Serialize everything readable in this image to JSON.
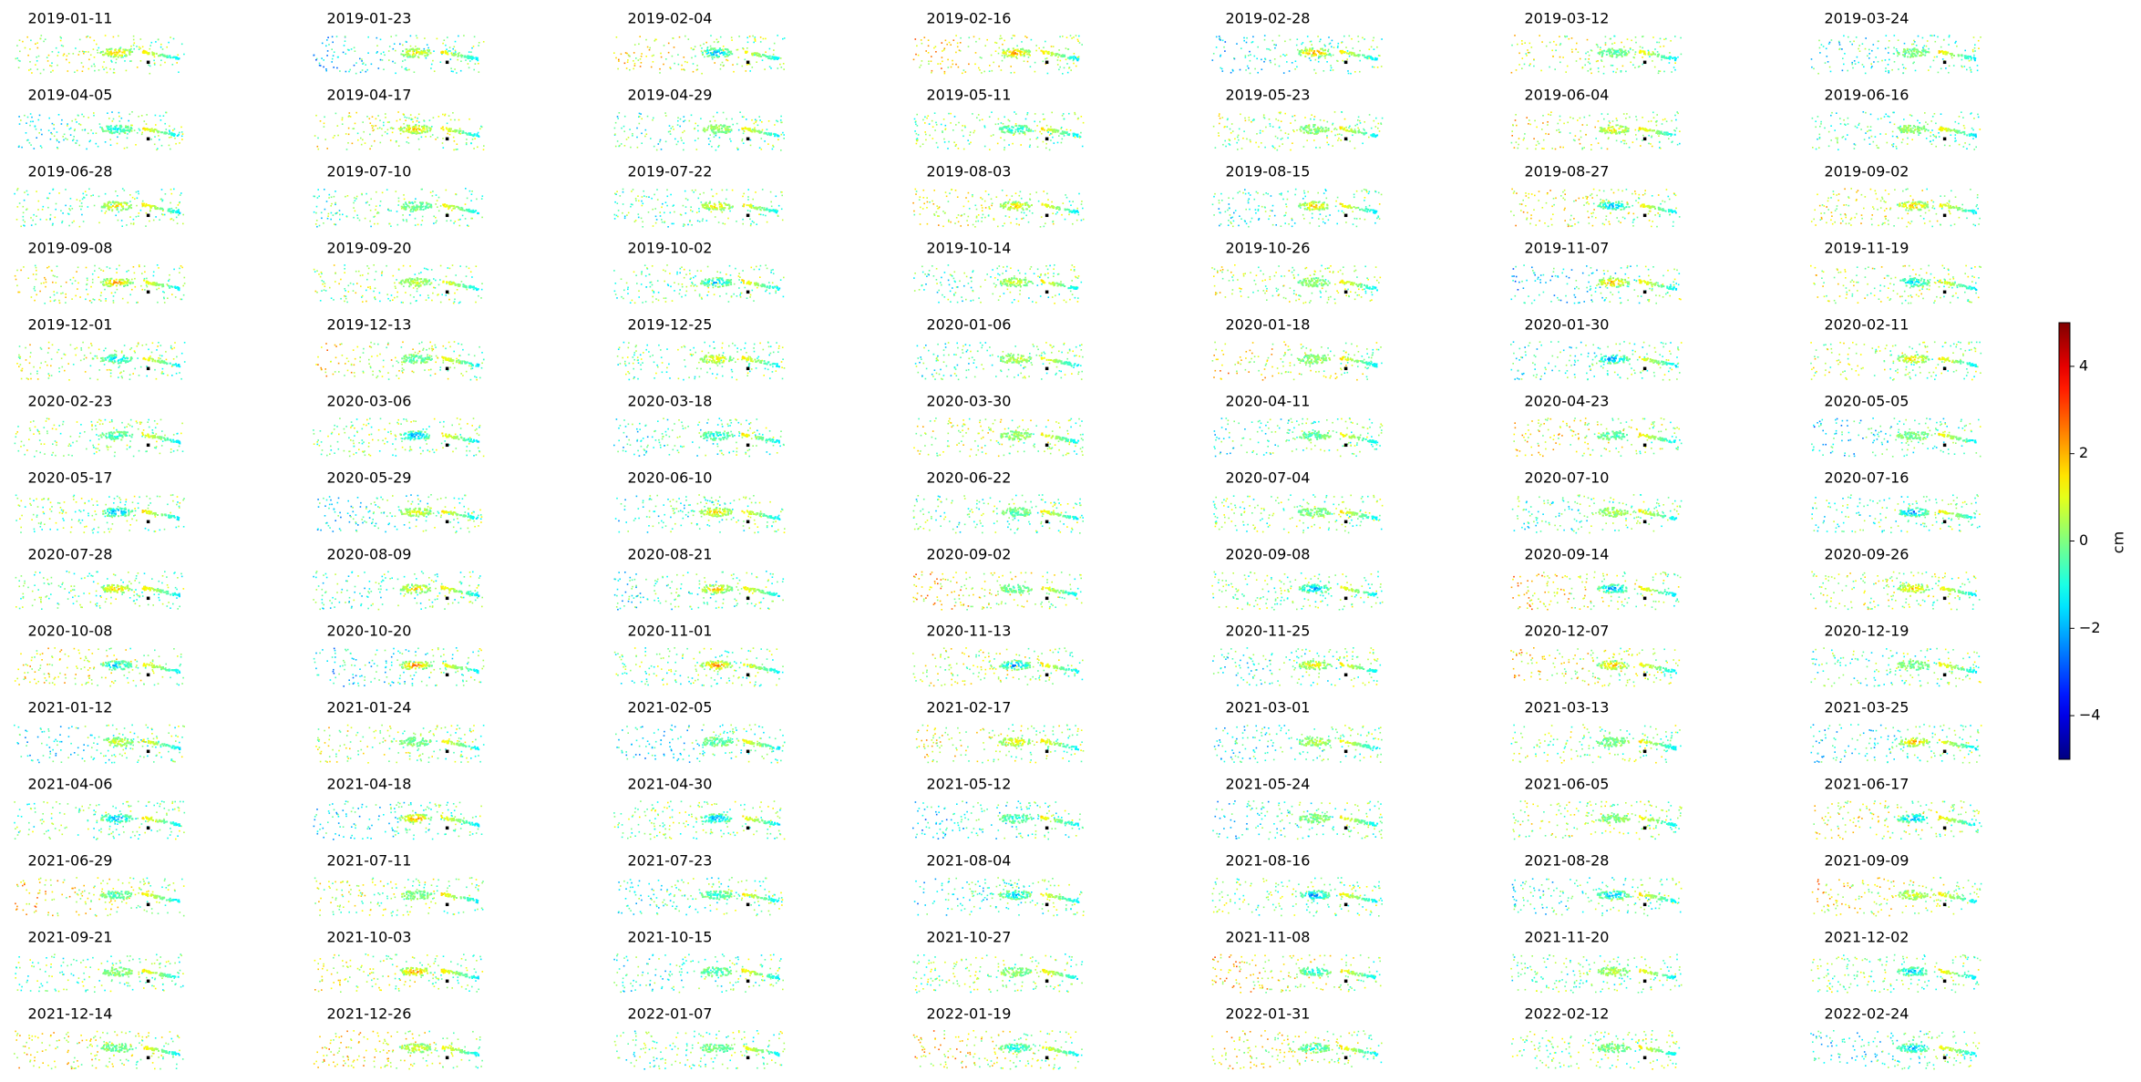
{
  "chart_data": {
    "type": "image-grid",
    "titles": [
      "2019-01-11",
      "2019-01-23",
      "2019-02-04",
      "2019-02-16",
      "2019-02-28",
      "2019-03-12",
      "2019-03-24",
      "2019-04-05",
      "2019-04-17",
      "2019-04-29",
      "2019-05-11",
      "2019-05-23",
      "2019-06-04",
      "2019-06-16",
      "2019-06-28",
      "2019-07-10",
      "2019-07-22",
      "2019-08-03",
      "2019-08-15",
      "2019-08-27",
      "2019-09-02",
      "2019-09-08",
      "2019-09-20",
      "2019-10-02",
      "2019-10-14",
      "2019-10-26",
      "2019-11-07",
      "2019-11-19",
      "2019-12-01",
      "2019-12-13",
      "2019-12-25",
      "2020-01-06",
      "2020-01-18",
      "2020-01-30",
      "2020-02-11",
      "2020-02-23",
      "2020-03-06",
      "2020-03-18",
      "2020-03-30",
      "2020-04-11",
      "2020-04-23",
      "2020-05-05",
      "2020-05-17",
      "2020-05-29",
      "2020-06-10",
      "2020-06-22",
      "2020-07-04",
      "2020-07-10",
      "2020-07-16",
      "2020-07-28",
      "2020-08-09",
      "2020-08-21",
      "2020-09-02",
      "2020-09-08",
      "2020-09-14",
      "2020-09-26",
      "2020-10-08",
      "2020-10-20",
      "2020-11-01",
      "2020-11-13",
      "2020-11-25",
      "2020-12-07",
      "2020-12-19",
      "2021-01-12",
      "2021-01-24",
      "2021-02-05",
      "2021-02-17",
      "2021-03-01",
      "2021-03-13",
      "2021-03-25",
      "2021-04-06",
      "2021-04-18",
      "2021-04-30",
      "2021-05-12",
      "2021-05-24",
      "2021-06-05",
      "2021-06-17",
      "2021-06-29",
      "2021-07-11",
      "2021-07-23",
      "2021-08-04",
      "2021-08-16",
      "2021-08-28",
      "2021-09-09",
      "2021-09-21",
      "2021-10-03",
      "2021-10-15",
      "2021-10-27",
      "2021-11-08",
      "2021-11-20",
      "2021-12-02",
      "2021-12-14",
      "2021-12-26",
      "2022-01-07",
      "2022-01-19",
      "2022-01-31",
      "2022-02-12",
      "2022-02-24"
    ],
    "colormap": "jet",
    "clim": [
      -5,
      5
    ],
    "cticks": [
      {
        "value": -4,
        "label": "−4"
      },
      {
        "value": -2,
        "label": "−2"
      },
      0,
      2,
      4
    ],
    "clabel": "cm"
  }
}
